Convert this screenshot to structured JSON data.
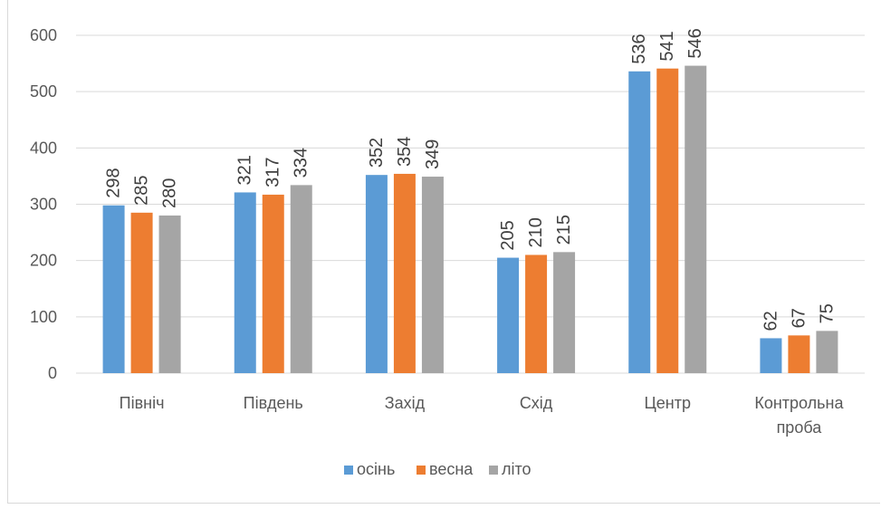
{
  "chart_data": {
    "type": "bar",
    "title": "",
    "xlabel": "",
    "ylabel": "",
    "categories": [
      "Північ",
      "Південь",
      "Захід",
      "Схід",
      "Центр",
      "Контрольна проба"
    ],
    "category_lines": [
      [
        "Північ"
      ],
      [
        "Південь"
      ],
      [
        "Захід"
      ],
      [
        "Схід"
      ],
      [
        "Центр"
      ],
      [
        "Контрольна",
        "проба"
      ]
    ],
    "series": [
      {
        "name": "осінь",
        "color": "#5b9bd5",
        "values": [
          298,
          321,
          352,
          205,
          536,
          62
        ]
      },
      {
        "name": "весна",
        "color": "#ed7d31",
        "values": [
          285,
          317,
          354,
          210,
          541,
          67
        ]
      },
      {
        "name": "літо",
        "color": "#a5a5a5",
        "values": [
          280,
          334,
          349,
          215,
          546,
          75
        ]
      }
    ],
    "ylim": [
      0,
      600
    ],
    "yticks": [
      "0",
      "100",
      "200",
      "300",
      "400",
      "500",
      "600"
    ],
    "grid": true,
    "data_labels": true,
    "legend_position": "bottom"
  }
}
